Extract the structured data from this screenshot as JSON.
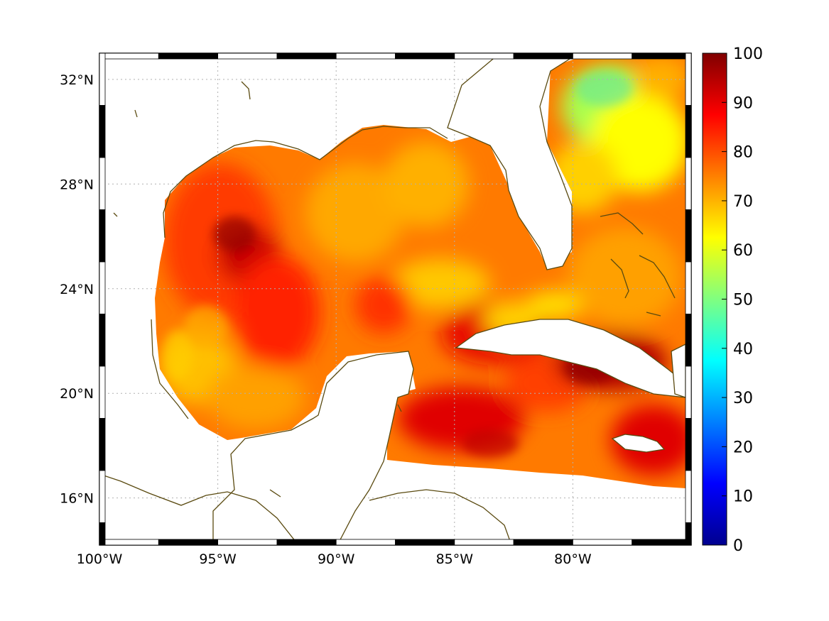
{
  "map": {
    "type": "heatmap",
    "x_axis": {
      "range": [
        -100,
        -75
      ],
      "ticks": [
        -100,
        -95,
        -90,
        -85,
        -80
      ],
      "tick_labels": [
        "100°W",
        "95°W",
        "90°W",
        "85°W",
        "80°W"
      ]
    },
    "y_axis": {
      "range": [
        14.2,
        33
      ],
      "ticks": [
        16,
        20,
        24,
        28,
        32
      ],
      "tick_labels": [
        "16°N",
        "20°N",
        "24°N",
        "28°N",
        "32°N"
      ]
    },
    "grid": true,
    "colorbar": {
      "range": [
        0,
        100
      ],
      "ticks": [
        0,
        10,
        20,
        30,
        40,
        50,
        60,
        70,
        80,
        90,
        100
      ],
      "tick_labels": [
        "0",
        "10",
        "20",
        "30",
        "40",
        "50",
        "60",
        "70",
        "80",
        "90",
        "100"
      ],
      "colormap": "jet",
      "colors": [
        "#00008f",
        "#0000ff",
        "#0080ff",
        "#00ffff",
        "#80ff80",
        "#ffff00",
        "#ff8000",
        "#ff0000",
        "#800000"
      ]
    },
    "colors": {
      "coastline": "#5a4a10",
      "grid": "#b0b0b0",
      "land": "#ffffff"
    }
  }
}
